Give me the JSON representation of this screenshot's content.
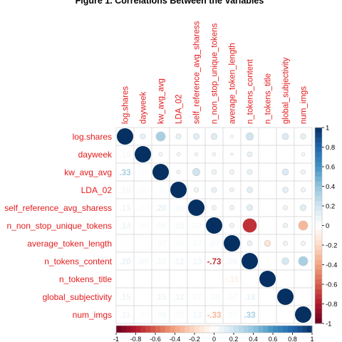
{
  "chart_data": {
    "type": "heatmap",
    "subtype": "mixed-correlation-matrix",
    "title": "Figure 1. Correlations Between the Variables",
    "variables": [
      "log.shares",
      "dayweek",
      "kw_avg_avg",
      "LDA_02",
      "self_reference_avg_sharess",
      "n_non_stop_unique_tokens",
      "average_token_length",
      "n_tokens_content",
      "n_tokens_title",
      "global_subjectivity",
      "num_imgs"
    ],
    "upper_method": "circle",
    "lower_method": "number",
    "lower_number_decimals": 2,
    "matrix": [
      [
        1.0,
        0.1,
        0.33,
        0.1,
        0.13,
        0.14,
        0.03,
        0.2,
        0.0,
        0.15,
        0.11
      ],
      [
        0.1,
        1.0,
        0.05,
        0.05,
        0.04,
        0.04,
        0.02,
        0.09,
        0.0,
        0.0,
        0.04
      ],
      [
        0.33,
        0.05,
        1.0,
        0.05,
        0.2,
        0.08,
        0.07,
        0.1,
        0.0,
        0.15,
        0.08
      ],
      [
        0.1,
        0.05,
        0.05,
        1.0,
        0.08,
        0.1,
        0.06,
        0.12,
        0.0,
        0.12,
        0.07
      ],
      [
        0.13,
        0.04,
        0.2,
        0.08,
        1.0,
        0.07,
        0.07,
        0.13,
        0.0,
        0.07,
        0.13
      ],
      [
        0.14,
        0.04,
        0.08,
        0.1,
        0.07,
        1.0,
        0.07,
        -0.73,
        0.0,
        0.08,
        -0.33
      ],
      [
        0.03,
        0.02,
        0.07,
        0.06,
        0.07,
        0.07,
        1.0,
        0.09,
        -0.15,
        0.07,
        0.07
      ],
      [
        0.2,
        0.09,
        0.1,
        0.12,
        0.13,
        -0.73,
        0.09,
        1.0,
        0.0,
        0.18,
        0.33
      ],
      [
        0.0,
        0.0,
        0.0,
        0.0,
        0.0,
        0.0,
        -0.15,
        0.0,
        1.0,
        0.0,
        0.0
      ],
      [
        0.15,
        0.0,
        0.15,
        0.12,
        0.07,
        0.08,
        0.07,
        0.18,
        0.0,
        1.0,
        0.0
      ],
      [
        0.11,
        0.04,
        0.08,
        0.07,
        0.13,
        -0.33,
        0.07,
        0.33,
        0.0,
        0.0,
        1.0
      ]
    ],
    "vertical_colorbar_ticks": [
      1,
      0.8,
      0.6,
      0.4,
      0.2,
      0,
      -0.2,
      -0.4,
      -0.6,
      -0.8,
      -1
    ],
    "horizontal_colorbar_ticks": [
      "-1",
      "-0.8",
      "-0.6",
      "-0.4",
      "-0.2",
      "0",
      "0.2",
      "0.4",
      "0.6",
      "0.8",
      "1"
    ],
    "range": [
      -1,
      1
    ],
    "colors": {
      "positive": "#053061",
      "zero": "#ffffff",
      "negative": "#67001f",
      "label": "#e41a1c",
      "grid": "#d8d8d8"
    }
  }
}
